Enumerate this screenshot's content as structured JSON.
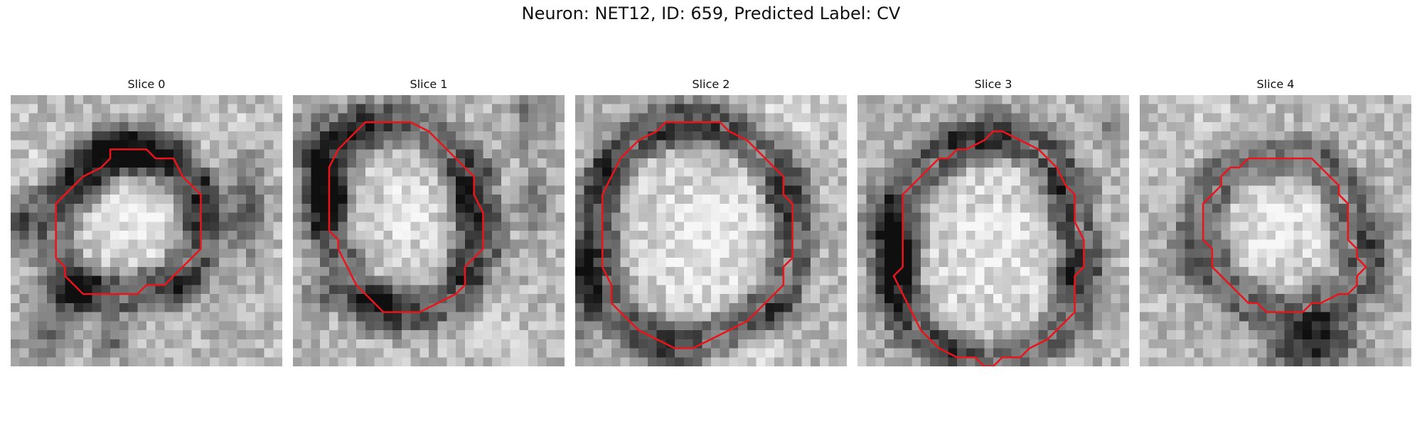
{
  "figure": {
    "title": "Neuron: NET12, ID: 659, Predicted Label: CV"
  },
  "colors": {
    "contour": "#e8151b",
    "colormap": "gray"
  },
  "panels": [
    {
      "title": "Slice 0",
      "seed": 11,
      "contour": [
        [
          11,
          6
        ],
        [
          15,
          6
        ],
        [
          16,
          7
        ],
        [
          18,
          7
        ],
        [
          19,
          9
        ],
        [
          21,
          11
        ],
        [
          21,
          17
        ],
        [
          20,
          18
        ],
        [
          19,
          19
        ],
        [
          18,
          20
        ],
        [
          17,
          21
        ],
        [
          15,
          21
        ],
        [
          14,
          22
        ],
        [
          8,
          22
        ],
        [
          7,
          21
        ],
        [
          6,
          20
        ],
        [
          6,
          19
        ],
        [
          5,
          18
        ],
        [
          5,
          12
        ],
        [
          6,
          11
        ],
        [
          7,
          10
        ],
        [
          8,
          9
        ],
        [
          10,
          8
        ],
        [
          11,
          7
        ]
      ],
      "dark_blobs": [
        [
          11,
          6,
          4,
          2,
          0.9
        ],
        [
          15,
          7,
          4,
          2,
          0.9
        ],
        [
          7,
          10,
          3,
          3,
          0.85
        ],
        [
          21,
          12,
          2,
          4,
          0.6
        ],
        [
          1,
          14,
          2,
          3,
          0.9
        ],
        [
          19,
          21,
          3,
          2,
          0.7
        ],
        [
          8,
          21,
          3,
          2,
          0.8
        ],
        [
          5,
          23,
          3,
          2,
          0.5
        ],
        [
          26,
          10,
          2,
          4,
          0.6
        ],
        [
          26,
          15,
          2,
          3,
          0.5
        ],
        [
          4,
          27,
          3,
          2,
          0.6
        ],
        [
          11,
          27,
          2,
          2,
          0.6
        ]
      ],
      "light_blobs": [
        [
          13,
          14,
          4,
          4,
          0.4
        ],
        [
          4,
          8,
          5,
          5,
          0.25
        ],
        [
          24,
          4,
          5,
          4,
          0.2
        ]
      ]
    },
    {
      "title": "Slice 1",
      "seed": 23,
      "contour": [
        [
          8,
          3
        ],
        [
          11,
          3
        ],
        [
          12,
          3
        ],
        [
          13,
          3
        ],
        [
          15,
          4
        ],
        [
          16,
          5
        ],
        [
          17,
          6
        ],
        [
          18,
          7
        ],
        [
          20,
          9
        ],
        [
          20,
          11
        ],
        [
          21,
          13
        ],
        [
          21,
          17
        ],
        [
          20,
          18
        ],
        [
          19,
          19
        ],
        [
          19,
          21
        ],
        [
          18,
          22
        ],
        [
          16,
          23
        ],
        [
          14,
          24
        ],
        [
          10,
          24
        ],
        [
          9,
          23
        ],
        [
          8,
          22
        ],
        [
          7,
          21
        ],
        [
          6,
          19
        ],
        [
          5,
          17
        ],
        [
          5,
          16
        ],
        [
          4,
          15
        ],
        [
          4,
          8
        ],
        [
          5,
          6
        ],
        [
          6,
          5
        ],
        [
          7,
          4
        ]
      ],
      "dark_blobs": [
        [
          3,
          7,
          3,
          5,
          0.8
        ],
        [
          4,
          13,
          2,
          4,
          0.8
        ],
        [
          10,
          23,
          4,
          2,
          0.8
        ],
        [
          19,
          12,
          2,
          5,
          0.8
        ],
        [
          8,
          4,
          3,
          2,
          0.6
        ],
        [
          19,
          20,
          2,
          2,
          0.6
        ],
        [
          26,
          2,
          2,
          4,
          0.5
        ],
        [
          27,
          12,
          2,
          3,
          0.5
        ],
        [
          3,
          22,
          2,
          2,
          0.5
        ]
      ],
      "light_blobs": [
        [
          13,
          13,
          4,
          4,
          0.3
        ],
        [
          6,
          15,
          2,
          2,
          0.6
        ],
        [
          22,
          26,
          4,
          3,
          0.2
        ]
      ]
    },
    {
      "title": "Slice 2",
      "seed": 37,
      "contour": [
        [
          10,
          3
        ],
        [
          16,
          3
        ],
        [
          17,
          4
        ],
        [
          19,
          5
        ],
        [
          20,
          6
        ],
        [
          21,
          7
        ],
        [
          22,
          8
        ],
        [
          23,
          9
        ],
        [
          23,
          11
        ],
        [
          24,
          12
        ],
        [
          24,
          18
        ],
        [
          23,
          19
        ],
        [
          23,
          21
        ],
        [
          22,
          22
        ],
        [
          21,
          23
        ],
        [
          20,
          24
        ],
        [
          19,
          25
        ],
        [
          17,
          26
        ],
        [
          15,
          27
        ],
        [
          13,
          28
        ],
        [
          11,
          28
        ],
        [
          9,
          27
        ],
        [
          7,
          26
        ],
        [
          6,
          25
        ],
        [
          5,
          24
        ],
        [
          4,
          23
        ],
        [
          4,
          21
        ],
        [
          3,
          19
        ],
        [
          3,
          11
        ],
        [
          4,
          9
        ],
        [
          5,
          7
        ],
        [
          6,
          6
        ],
        [
          7,
          5
        ],
        [
          9,
          4
        ]
      ],
      "dark_blobs": [
        [
          1,
          20,
          2,
          6,
          1.0
        ],
        [
          3,
          9,
          2,
          3,
          0.6
        ],
        [
          13,
          4,
          5,
          2,
          0.6
        ],
        [
          23,
          11,
          2,
          4,
          0.5
        ],
        [
          22,
          24,
          3,
          2,
          0.5
        ],
        [
          10,
          27,
          4,
          2,
          0.5
        ]
      ],
      "light_blobs": [
        [
          14,
          16,
          6,
          6,
          0.4
        ],
        [
          24,
          2,
          5,
          3,
          0.3
        ],
        [
          18,
          29,
          5,
          2,
          0.3
        ]
      ]
    },
    {
      "title": "Slice 3",
      "seed": 53,
      "contour": [
        [
          16,
          4
        ],
        [
          18,
          5
        ],
        [
          20,
          6
        ],
        [
          21,
          7
        ],
        [
          22,
          8
        ],
        [
          23,
          10
        ],
        [
          24,
          11
        ],
        [
          24,
          14
        ],
        [
          25,
          16
        ],
        [
          25,
          19
        ],
        [
          24,
          20
        ],
        [
          24,
          24
        ],
        [
          23,
          25
        ],
        [
          22,
          26
        ],
        [
          21,
          27
        ],
        [
          19,
          28
        ],
        [
          18,
          29
        ],
        [
          16,
          29
        ],
        [
          15,
          30
        ],
        [
          14,
          30
        ],
        [
          13,
          29
        ],
        [
          11,
          29
        ],
        [
          9,
          28
        ],
        [
          8,
          27
        ],
        [
          7,
          26
        ],
        [
          6,
          24
        ],
        [
          5,
          22
        ],
        [
          4,
          20
        ],
        [
          5,
          19
        ],
        [
          5,
          11
        ],
        [
          6,
          10
        ],
        [
          7,
          9
        ],
        [
          8,
          8
        ],
        [
          9,
          7
        ],
        [
          10,
          7
        ],
        [
          11,
          6
        ],
        [
          12,
          6
        ],
        [
          14,
          5
        ],
        [
          15,
          4
        ]
      ],
      "dark_blobs": [
        [
          4,
          19,
          2,
          7,
          1.0
        ],
        [
          2,
          14,
          2,
          3,
          0.6
        ],
        [
          13,
          5,
          6,
          2,
          0.6
        ],
        [
          22,
          12,
          2,
          5,
          0.5
        ],
        [
          24,
          20,
          2,
          3,
          0.6
        ],
        [
          10,
          28,
          3,
          2,
          0.5
        ],
        [
          28,
          4,
          2,
          2,
          0.4
        ]
      ],
      "light_blobs": [
        [
          15,
          17,
          6,
          7,
          0.35
        ]
      ]
    },
    {
      "title": "Slice 4",
      "seed": 71,
      "contour": [
        [
          12,
          7
        ],
        [
          19,
          7
        ],
        [
          20,
          8
        ],
        [
          21,
          9
        ],
        [
          22,
          10
        ],
        [
          22,
          11
        ],
        [
          23,
          12
        ],
        [
          23,
          16
        ],
        [
          24,
          17
        ],
        [
          24,
          18
        ],
        [
          25,
          19
        ],
        [
          24,
          20
        ],
        [
          24,
          21
        ],
        [
          23,
          22
        ],
        [
          22,
          22
        ],
        [
          20,
          23
        ],
        [
          19,
          23
        ],
        [
          18,
          24
        ],
        [
          14,
          24
        ],
        [
          13,
          23
        ],
        [
          12,
          23
        ],
        [
          11,
          22
        ],
        [
          10,
          21
        ],
        [
          9,
          20
        ],
        [
          8,
          19
        ],
        [
          8,
          17
        ],
        [
          7,
          16
        ],
        [
          7,
          12
        ],
        [
          8,
          11
        ],
        [
          9,
          10
        ],
        [
          9,
          9
        ],
        [
          10,
          8
        ],
        [
          11,
          8
        ]
      ],
      "dark_blobs": [
        [
          20,
          27,
          4,
          3,
          1.0
        ],
        [
          17,
          29,
          3,
          2,
          0.6
        ],
        [
          5,
          18,
          2,
          4,
          0.5
        ],
        [
          26,
          16,
          2,
          4,
          0.4
        ]
      ],
      "light_blobs": [
        [
          15,
          14,
          5,
          5,
          0.35
        ],
        [
          6,
          3,
          6,
          4,
          0.2
        ]
      ]
    }
  ]
}
